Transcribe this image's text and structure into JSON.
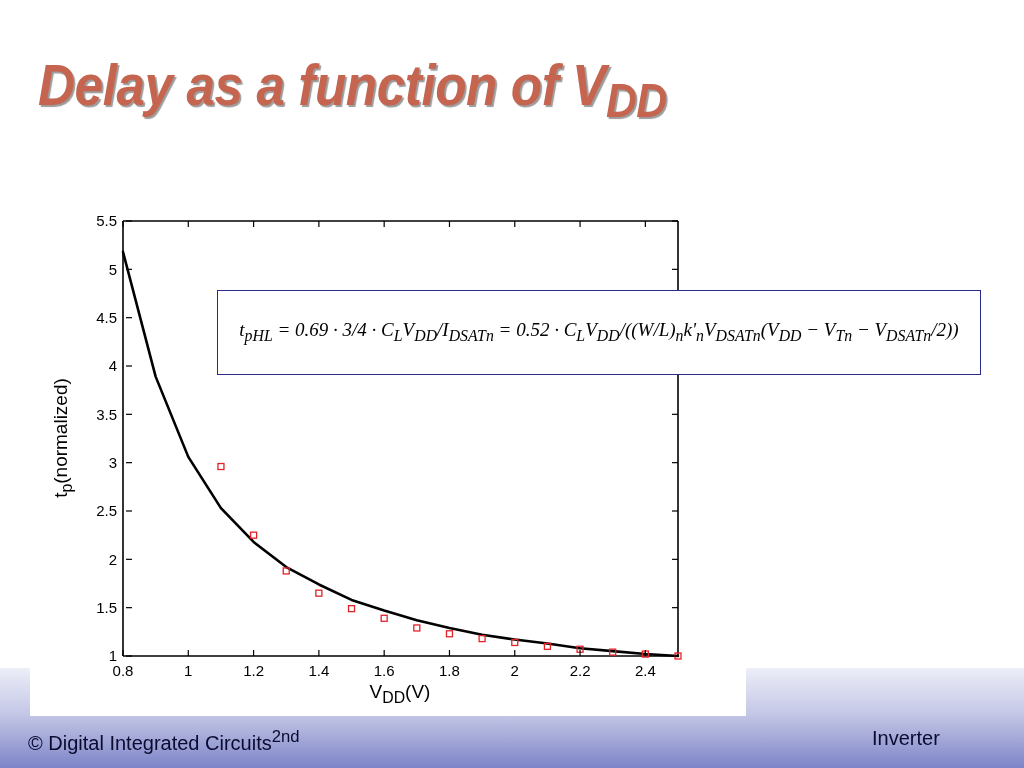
{
  "chart_data": {
    "type": "line",
    "title": "Delay as a function of V$_{DD}$",
    "xlabel": "V$_{DD}$(V)",
    "ylabel": "t$_{p}$(normalized)",
    "xlim": [
      0.8,
      2.5
    ],
    "xticks": [
      0.8,
      1,
      1.2,
      1.4,
      1.6,
      1.8,
      2,
      2.2,
      2.4
    ],
    "ylim": [
      1,
      5.5
    ],
    "yticks": [
      1,
      1.5,
      2,
      2.5,
      3,
      3.5,
      4,
      4.5,
      5,
      5.5
    ],
    "series": [
      {
        "color": "#000000",
        "marker": "none",
        "x": [
          0.8,
          0.9,
          1.0,
          1.1,
          1.2,
          1.3,
          1.4,
          1.5,
          1.6,
          1.7,
          1.8,
          1.9,
          2.0,
          2.1,
          2.2,
          2.3,
          2.4,
          2.5
        ],
        "values": [
          5.18,
          3.89,
          3.06,
          2.53,
          2.18,
          1.92,
          1.74,
          1.58,
          1.47,
          1.37,
          1.29,
          1.22,
          1.17,
          1.13,
          1.08,
          1.05,
          1.02,
          1.0
        ]
      },
      {
        "type": "scatter",
        "color": "#e32227",
        "marker": "square",
        "x": [
          1.1,
          1.2,
          1.3,
          1.4,
          1.5,
          1.6,
          1.7,
          1.8,
          1.9,
          2.0,
          2.1,
          2.2,
          2.3,
          2.4,
          2.5
        ],
        "values": [
          2.96,
          2.25,
          1.88,
          1.65,
          1.49,
          1.39,
          1.29,
          1.23,
          1.18,
          1.14,
          1.1,
          1.07,
          1.04,
          1.02,
          1.0
        ]
      }
    ],
    "annotations": [
      "t$_{pHL}$ = 0.69 · 3/4 · C$_{L}$V$_{DD}$/I$_{DSATn}$ = 0.52 · C$_{L}$V$_{DD}$/((W/L)$_{n}$k'$_{n}$V$_{DSATn}$(V$_{DD}$ − V$_{Tn}$ − V$_{DSATn}$/2))",
      "© Digital Integrated Circuits$^{2nd}$",
      "Inverter"
    ]
  }
}
